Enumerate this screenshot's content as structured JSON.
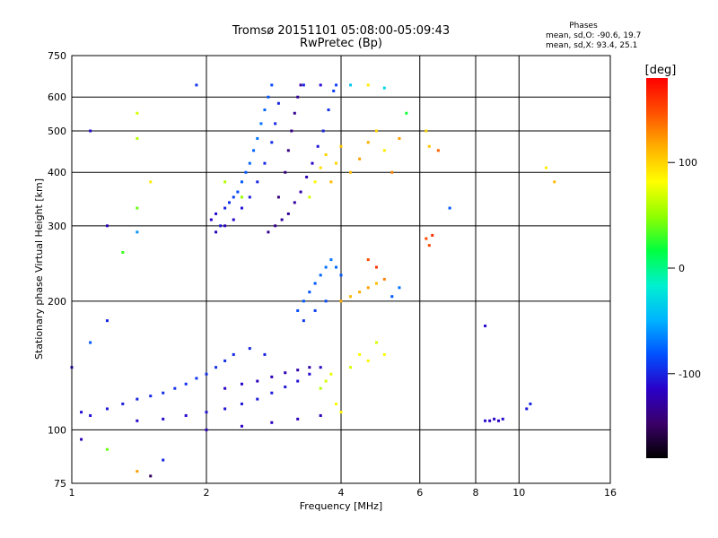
{
  "chart_data": {
    "type": "scatter",
    "title": "Tromsø 20151101 05:08:00-05:09:43",
    "subtitle": "RwPretec (Bp)",
    "xlabel": "Frequency [MHz]",
    "ylabel": "Stationary phase Virtual Height [km]",
    "x_scale": "log",
    "y_scale": "log",
    "xlim": [
      1,
      16
    ],
    "ylim": [
      75,
      750
    ],
    "x_ticks": [
      1,
      2,
      4,
      6,
      8,
      10,
      16
    ],
    "y_ticks": [
      75,
      100,
      200,
      300,
      400,
      500,
      600,
      750
    ],
    "grid": true,
    "stats": {
      "heading": "Phases",
      "o_line": "mean, sd,O: -90.6, 19.7",
      "x_line": "mean, sd,X:  93.4, 25.1"
    },
    "colorbar": {
      "label": "[deg]",
      "range": [
        -180,
        180
      ],
      "ticks": [
        100,
        0,
        -100
      ],
      "colormap": [
        "#000000",
        "#3a0068",
        "#2a00c8",
        "#0050ff",
        "#00b4ff",
        "#00f0d0",
        "#00ff40",
        "#90ff00",
        "#ffff00",
        "#ffb000",
        "#ff5000",
        "#ff0000"
      ]
    },
    "series": [
      {
        "comment": "F-region trace (low freq)",
        "points": [
          [
            2.05,
            310,
            -115
          ],
          [
            2.1,
            320,
            -110
          ],
          [
            2.15,
            300,
            -105
          ],
          [
            2.2,
            330,
            -100
          ],
          [
            2.25,
            340,
            -95
          ],
          [
            2.3,
            350,
            -90
          ],
          [
            2.35,
            360,
            -85
          ],
          [
            2.4,
            380,
            -80
          ],
          [
            2.45,
            400,
            -80
          ],
          [
            2.5,
            420,
            -75
          ],
          [
            2.55,
            450,
            -75
          ],
          [
            2.6,
            480,
            -70
          ],
          [
            2.65,
            520,
            -70
          ],
          [
            2.7,
            560,
            -75
          ],
          [
            2.75,
            600,
            -80
          ],
          [
            2.8,
            640,
            -85
          ],
          [
            2.1,
            290,
            -120
          ],
          [
            2.2,
            300,
            -118
          ],
          [
            2.3,
            310,
            -112
          ],
          [
            2.4,
            330,
            -108
          ],
          [
            2.5,
            350,
            -104
          ],
          [
            2.6,
            380,
            -100
          ],
          [
            2.7,
            420,
            -98
          ],
          [
            2.8,
            470,
            -96
          ],
          [
            2.85,
            520,
            -98
          ],
          [
            2.9,
            580,
            -100
          ],
          [
            2.75,
            290,
            -135
          ],
          [
            2.85,
            300,
            -135
          ],
          [
            2.95,
            310,
            -130
          ],
          [
            3.05,
            320,
            -130
          ],
          [
            3.15,
            340,
            -128
          ],
          [
            3.25,
            360,
            -125
          ],
          [
            3.35,
            390,
            -120
          ],
          [
            3.45,
            420,
            -115
          ],
          [
            3.55,
            460,
            -105
          ],
          [
            3.65,
            500,
            -100
          ],
          [
            3.75,
            560,
            -95
          ],
          [
            3.85,
            620,
            -90
          ],
          [
            2.9,
            350,
            -140
          ],
          [
            3.0,
            400,
            -140
          ],
          [
            3.05,
            450,
            -138
          ],
          [
            3.1,
            500,
            -135
          ],
          [
            3.15,
            550,
            -132
          ],
          [
            3.2,
            600,
            -130
          ],
          [
            3.25,
            640,
            -128
          ],
          [
            3.4,
            350,
            70
          ],
          [
            3.5,
            380,
            85
          ],
          [
            3.6,
            410,
            95
          ],
          [
            3.7,
            440,
            100
          ],
          [
            3.8,
            380,
            110
          ],
          [
            3.9,
            420,
            100
          ],
          [
            4.0,
            460,
            105
          ],
          [
            4.2,
            400,
            110
          ],
          [
            4.4,
            430,
            120
          ],
          [
            4.6,
            470,
            115
          ],
          [
            4.8,
            500,
            100
          ],
          [
            5.0,
            450,
            90
          ],
          [
            5.2,
            400,
            130
          ],
          [
            5.4,
            480,
            120
          ],
          [
            6.2,
            280,
            150
          ],
          [
            6.3,
            460,
            105
          ]
        ]
      },
      {
        "comment": "Es / low E trace",
        "points": [
          [
            1.05,
            110,
            -110
          ],
          [
            1.1,
            108,
            -108
          ],
          [
            1.2,
            112,
            -105
          ],
          [
            1.3,
            115,
            -102
          ],
          [
            1.4,
            118,
            -100
          ],
          [
            1.5,
            120,
            -98
          ],
          [
            1.6,
            122,
            -96
          ],
          [
            1.7,
            125,
            -95
          ],
          [
            1.8,
            128,
            -95
          ],
          [
            1.9,
            132,
            -94
          ],
          [
            2.0,
            135,
            -95
          ],
          [
            2.1,
            140,
            -95
          ],
          [
            2.2,
            145,
            -96
          ],
          [
            2.3,
            150,
            -98
          ],
          [
            2.5,
            155,
            -100
          ],
          [
            2.7,
            150,
            -102
          ],
          [
            1.4,
            105,
            -112
          ],
          [
            1.6,
            106,
            -110
          ],
          [
            1.8,
            108,
            -110
          ],
          [
            2.0,
            110,
            -108
          ],
          [
            2.2,
            112,
            -106
          ],
          [
            2.4,
            115,
            -105
          ],
          [
            2.6,
            118,
            -104
          ],
          [
            2.8,
            122,
            -104
          ],
          [
            3.0,
            126,
            -106
          ],
          [
            3.2,
            130,
            -108
          ],
          [
            3.4,
            135,
            -110
          ],
          [
            3.6,
            140,
            -112
          ],
          [
            2.2,
            125,
            -115
          ],
          [
            2.4,
            128,
            -115
          ],
          [
            2.6,
            130,
            -118
          ],
          [
            2.8,
            133,
            -120
          ],
          [
            3.0,
            136,
            -122
          ],
          [
            3.2,
            138,
            -125
          ],
          [
            3.4,
            140,
            -125
          ],
          [
            2.0,
            100,
            -118
          ],
          [
            2.4,
            102,
            -116
          ],
          [
            2.8,
            104,
            -116
          ],
          [
            3.2,
            106,
            -118
          ],
          [
            3.6,
            108,
            -120
          ],
          [
            3.6,
            125,
            60
          ],
          [
            3.7,
            130,
            70
          ],
          [
            3.8,
            135,
            75
          ],
          [
            3.9,
            115,
            80
          ],
          [
            4.0,
            110,
            85
          ],
          [
            4.2,
            140,
            70
          ],
          [
            4.4,
            150,
            80
          ],
          [
            4.6,
            145,
            85
          ],
          [
            4.8,
            160,
            70
          ],
          [
            5.0,
            150,
            80
          ],
          [
            8.4,
            105,
            -110
          ],
          [
            8.6,
            105,
            -115
          ],
          [
            8.8,
            106,
            -112
          ],
          [
            9.0,
            105,
            -118
          ],
          [
            9.2,
            106,
            -110
          ],
          [
            10.4,
            112,
            -105
          ],
          [
            10.6,
            115,
            -100
          ]
        ]
      },
      {
        "comment": "mid-height E/F1 cluster",
        "points": [
          [
            3.2,
            190,
            -85
          ],
          [
            3.3,
            200,
            -80
          ],
          [
            3.4,
            210,
            -82
          ],
          [
            3.5,
            220,
            -80
          ],
          [
            3.6,
            230,
            -75
          ],
          [
            3.7,
            240,
            -72
          ],
          [
            3.8,
            250,
            -70
          ],
          [
            3.9,
            240,
            -75
          ],
          [
            4.0,
            230,
            -80
          ],
          [
            3.3,
            180,
            -92
          ],
          [
            3.5,
            190,
            -90
          ],
          [
            3.7,
            200,
            -86
          ],
          [
            4.0,
            200,
            115
          ],
          [
            4.2,
            205,
            110
          ],
          [
            4.4,
            210,
            115
          ],
          [
            4.6,
            215,
            120
          ],
          [
            4.8,
            220,
            110
          ],
          [
            5.0,
            225,
            130
          ],
          [
            5.2,
            205,
            -80
          ],
          [
            5.4,
            215,
            -70
          ],
          [
            4.6,
            250,
            150
          ],
          [
            4.8,
            240,
            160
          ],
          [
            6.3,
            270,
            150
          ],
          [
            6.4,
            285,
            160
          ],
          [
            8.4,
            175,
            -110
          ]
        ]
      },
      {
        "comment": "scattered points",
        "points": [
          [
            1.1,
            500,
            -110
          ],
          [
            1.2,
            300,
            -120
          ],
          [
            1.3,
            260,
            30
          ],
          [
            1.4,
            480,
            60
          ],
          [
            1.4,
            550,
            70
          ],
          [
            1.4,
            290,
            -60
          ],
          [
            1.4,
            330,
            40
          ],
          [
            1.5,
            380,
            90
          ],
          [
            1.2,
            180,
            -100
          ],
          [
            1.1,
            160,
            -80
          ],
          [
            1.0,
            140,
            -110
          ],
          [
            1.05,
            95,
            -120
          ],
          [
            1.2,
            90,
            40
          ],
          [
            1.4,
            80,
            120
          ],
          [
            1.5,
            78,
            -150
          ],
          [
            1.6,
            85,
            -100
          ],
          [
            1.9,
            640,
            -95
          ],
          [
            2.2,
            380,
            60
          ],
          [
            2.4,
            350,
            50
          ],
          [
            3.3,
            640,
            -100
          ],
          [
            3.6,
            640,
            -110
          ],
          [
            3.9,
            640,
            -90
          ],
          [
            4.2,
            640,
            -40
          ],
          [
            4.6,
            640,
            90
          ],
          [
            5.0,
            630,
            -30
          ],
          [
            5.6,
            550,
            20
          ],
          [
            6.2,
            500,
            100
          ],
          [
            6.6,
            450,
            140
          ],
          [
            12.0,
            380,
            110
          ],
          [
            11.5,
            410,
            90
          ],
          [
            7.0,
            330,
            -80
          ]
        ]
      }
    ]
  }
}
